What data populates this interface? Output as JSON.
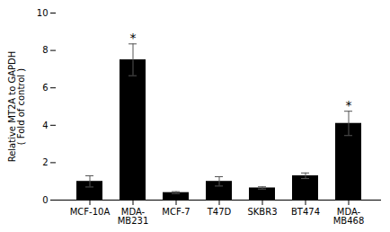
{
  "chart_data": {
    "type": "bar",
    "categories": [
      "MCF-10A",
      "MDA-\nMB231",
      "MCF-7",
      "T47D",
      "SKBR3",
      "BT474",
      "MDA-\nMB468"
    ],
    "values": [
      1.0,
      7.5,
      0.4,
      1.0,
      0.65,
      1.3,
      4.1
    ],
    "errors": [
      0.3,
      0.85,
      0.05,
      0.25,
      0.06,
      0.15,
      0.65
    ],
    "annotations": [
      null,
      "*",
      null,
      null,
      null,
      null,
      "*"
    ],
    "ylabel": "Relative MT2A to GAPDH\n( Fold of control )",
    "ylim": [
      0,
      10
    ],
    "yticks": [
      0,
      2,
      4,
      6,
      8,
      10
    ],
    "grid": false
  }
}
